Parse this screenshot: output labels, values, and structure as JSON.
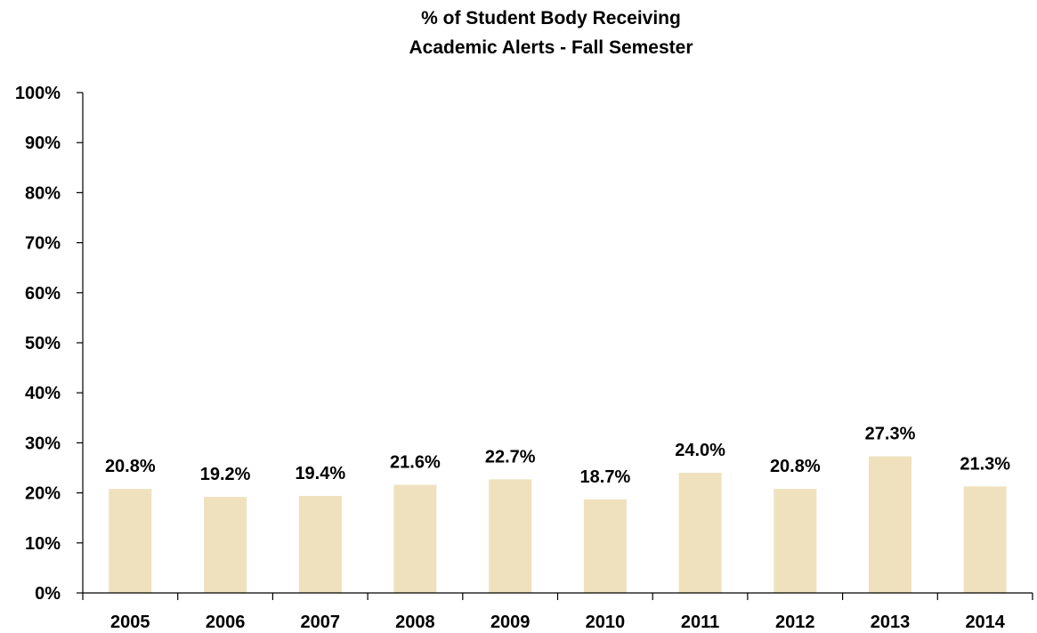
{
  "chart_data": {
    "type": "bar",
    "title_lines": [
      "% of Student Body Receiving",
      "Academic Alerts - Fall Semester"
    ],
    "categories": [
      "2005",
      "2006",
      "2007",
      "2008",
      "2009",
      "2010",
      "2011",
      "2012",
      "2013",
      "2014"
    ],
    "values": [
      20.8,
      19.2,
      19.4,
      21.6,
      22.7,
      18.7,
      24.0,
      20.8,
      27.3,
      21.3
    ],
    "data_labels": [
      "20.8%",
      "19.2%",
      "19.4%",
      "21.6%",
      "22.7%",
      "18.7%",
      "24.0%",
      "20.8%",
      "27.3%",
      "21.3%"
    ],
    "y_ticks": [
      "0%",
      "10%",
      "20%",
      "30%",
      "40%",
      "50%",
      "60%",
      "70%",
      "80%",
      "90%",
      "100%"
    ],
    "ylim": [
      0,
      100
    ],
    "grid": false,
    "legend": "none",
    "bar_color": "#efe1bd",
    "axis_color": "#000000"
  }
}
